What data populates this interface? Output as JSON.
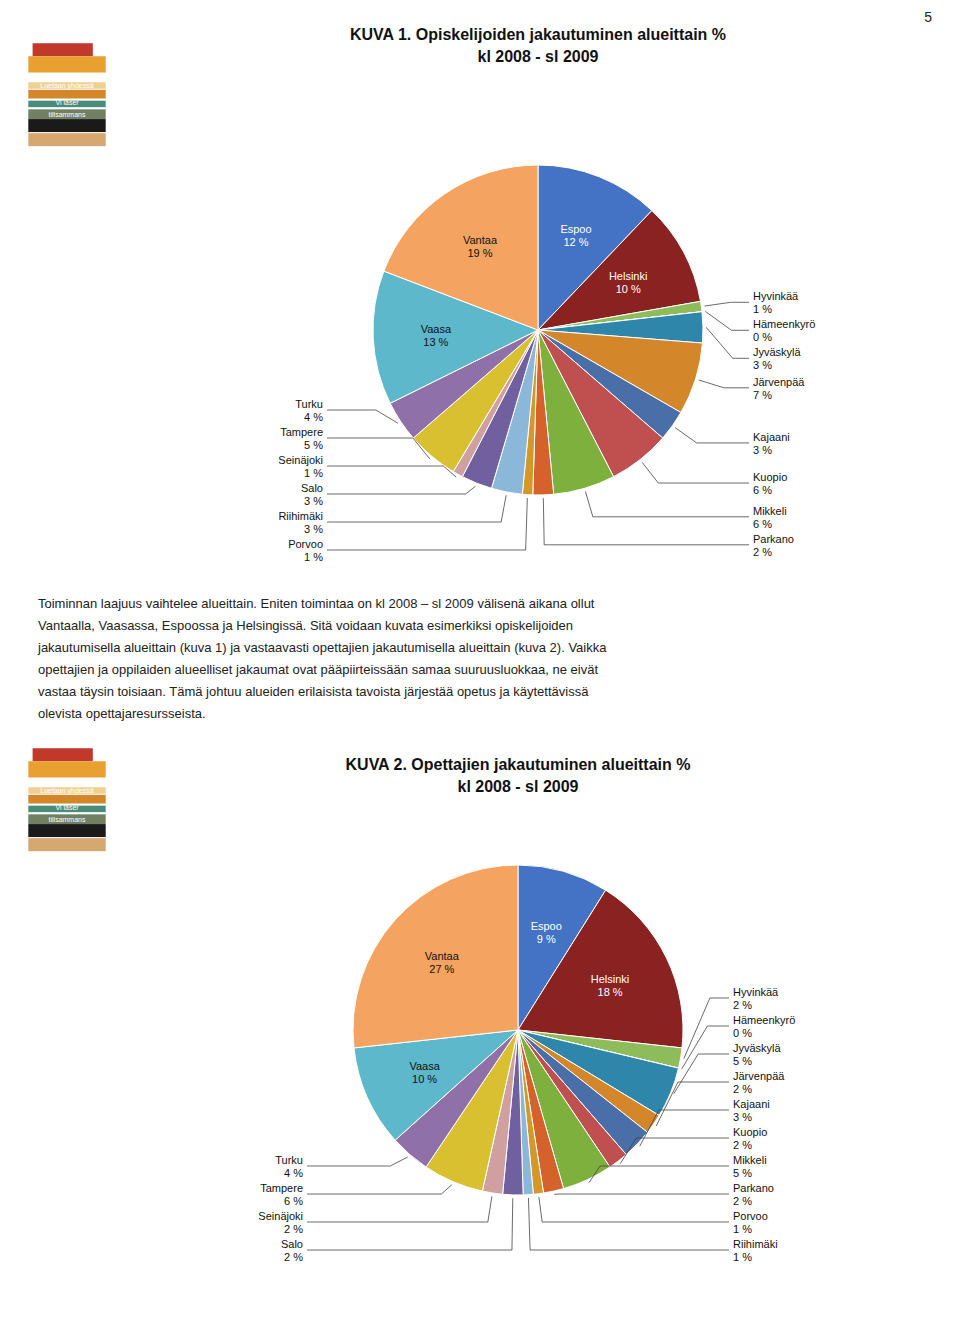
{
  "chart_data": [
    {
      "type": "pie",
      "title": "KUVA 1. Opiskelijoiden jakautuminen alueittain %",
      "subtitle": "kl 2008 - sl 2009",
      "categories": [
        "Espoo",
        "Helsinki",
        "Hyvinkää",
        "Hämeenkyrö",
        "Jyväskylä",
        "Järvenpää",
        "Kajaani",
        "Kuopio",
        "Mikkeli",
        "Parkano",
        "Porvoo",
        "Riihimäki",
        "Salo",
        "Seinäjoki",
        "Tampere",
        "Turku",
        "Vaasa",
        "Vantaa"
      ],
      "values": [
        12,
        10,
        1,
        0,
        3,
        7,
        3,
        6,
        6,
        2,
        1,
        3,
        3,
        1,
        5,
        4,
        13,
        19
      ],
      "value_labels": [
        "12 %",
        "10 %",
        "1 %",
        "0 %",
        "3 %",
        "7 %",
        "3 %",
        "6 %",
        "6 %",
        "2 %",
        "1 %",
        "3 %",
        "3 %",
        "1 %",
        "5 %",
        "4 %",
        "13 %",
        "19 %"
      ],
      "colors": [
        "#4472C4",
        "#8B2222",
        "#8FBC5A",
        "#3A8C7C",
        "#2E86AB",
        "#D4862A",
        "#4A6EA8",
        "#C05050",
        "#7DB03C",
        "#D4622A",
        "#D4982A",
        "#8BB8D8",
        "#7060A0",
        "#D0A0A0",
        "#D8C030",
        "#9070A8",
        "#5DB8CC",
        "#F4A460"
      ],
      "data_labels": true
    },
    {
      "type": "pie",
      "title": "KUVA 2. Opettajien jakautuminen alueittain %",
      "subtitle": "kl 2008 - sl 2009",
      "categories": [
        "Espoo",
        "Helsinki",
        "Hyvinkää",
        "Hämeenkyrö",
        "Jyväskylä",
        "Järvenpää",
        "Kajaani",
        "Kuopio",
        "Mikkeli",
        "Parkano",
        "Porvoo",
        "Riihimäki",
        "Salo",
        "Seinäjoki",
        "Tampere",
        "Turku",
        "Vaasa",
        "Vantaa"
      ],
      "values": [
        9,
        18,
        2,
        0,
        5,
        2,
        3,
        2,
        5,
        2,
        1,
        1,
        2,
        2,
        6,
        4,
        10,
        27
      ],
      "value_labels": [
        "9 %",
        "18 %",
        "2 %",
        "0 %",
        "5 %",
        "2 %",
        "3 %",
        "2 %",
        "5 %",
        "2 %",
        "1 %",
        "1 %",
        "2 %",
        "2 %",
        "6 %",
        "4 %",
        "10 %",
        "27 %"
      ],
      "colors": [
        "#4472C4",
        "#8B2222",
        "#8FBC5A",
        "#3A8C7C",
        "#2E86AB",
        "#D4862A",
        "#4A6EA8",
        "#C05050",
        "#7DB03C",
        "#D4622A",
        "#D4982A",
        "#8BB8D8",
        "#7060A0",
        "#D0A0A0",
        "#D8C030",
        "#9070A8",
        "#5DB8CC",
        "#F4A460"
      ],
      "data_labels": true
    }
  ],
  "page": {
    "page_number": "5",
    "body_text": [
      "Toiminnan laajuus vaihtelee alueittain. Eniten toimintaa on kl 2008 – sl 2009 välisenä aikana ollut",
      "Vantaalla, Vaasassa, Espoossa ja Helsingissä. Sitä voidaan kuvata esimerkiksi opiskelijoiden",
      "jakautumisella alueittain (kuva 1) ja vastaavasti opettajien jakautumisella alueittain (kuva 2). Vaikka",
      "opettajien ja oppilaiden alueelliset jakaumat ovat pääpiirteissään samaa suuruusluokkaa, ne eivät",
      "vastaa täysin toisiaan. Tämä johtuu alueiden erilaisista tavoista järjestää opetus ja käytettävissä",
      "olevista opettajaresursseista."
    ],
    "icon_labels": [
      "Luetaan yhdessä",
      "Vi läser",
      "tillsammans"
    ]
  }
}
